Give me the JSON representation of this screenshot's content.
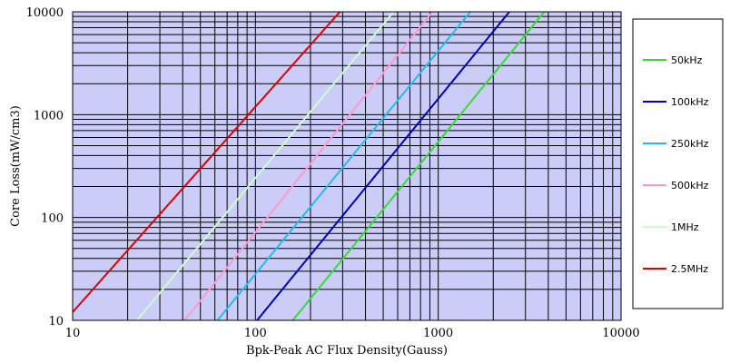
{
  "chart_data": {
    "type": "line",
    "title": "",
    "xlabel": "Bpk-Peak AC Flux Density(Gauss)",
    "ylabel": "Core Loss(mW/cm3)",
    "xscale": "log",
    "yscale": "log",
    "xlim": [
      10,
      10000
    ],
    "ylim": [
      10,
      10000
    ],
    "x_ticks": [
      "10",
      "100",
      "1000",
      "10000"
    ],
    "y_ticks": [
      "10",
      "100",
      "1000",
      "10000"
    ],
    "grid": true,
    "plot_background": "#ccccf8",
    "legend_position": "right",
    "series": [
      {
        "name": "50kHz",
        "color": "#33dd33",
        "x": [
          160,
          3800
        ],
        "y": [
          10,
          10000
        ]
      },
      {
        "name": "100kHz",
        "color": "#0000bb",
        "x": [
          102,
          2450
        ],
        "y": [
          10,
          10000
        ]
      },
      {
        "name": "250kHz",
        "color": "#22bbee",
        "x": [
          62,
          1500
        ],
        "y": [
          10,
          10000
        ]
      },
      {
        "name": "500kHz",
        "color": "#ff99cc",
        "x": [
          41,
          930
        ],
        "y": [
          10,
          10000
        ]
      },
      {
        "name": "1MHz",
        "color": "#ccffcc",
        "x": [
          22.5,
          570
        ],
        "y": [
          10,
          10000
        ]
      },
      {
        "name": "2.5MHz",
        "color": "#dd0000",
        "x": [
          10,
          290
        ],
        "y": [
          12,
          10000
        ]
      }
    ]
  }
}
